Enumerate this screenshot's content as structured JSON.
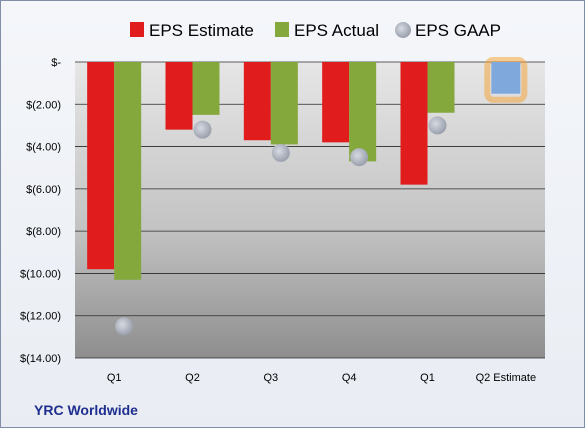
{
  "company": "YRC Worldwide",
  "chart_data": {
    "type": "bar",
    "categories": [
      "Q1",
      "Q2",
      "Q3",
      "Q4",
      "Q1",
      "Q2 Estimate"
    ],
    "series": [
      {
        "name": "EPS Estimate",
        "color": "#e01c1c",
        "values": [
          -9.8,
          -3.2,
          -3.7,
          -3.8,
          -5.8,
          null
        ]
      },
      {
        "name": "EPS Actual",
        "color": "#84a83c",
        "values": [
          -10.3,
          -2.5,
          -3.9,
          -4.7,
          -2.4,
          null
        ]
      },
      {
        "name": "EPS GAAP",
        "color": "#b0b6c2",
        "marker": "circle",
        "values": [
          -12.5,
          -3.2,
          -4.3,
          -4.5,
          -3.0,
          null
        ]
      }
    ],
    "forecast": {
      "category": "Q2 Estimate",
      "value": -1.5,
      "color": "#7fa8dc",
      "glow": "#f4a63c"
    },
    "ylim": [
      -14,
      0
    ],
    "yticks": [
      0,
      -2,
      -4,
      -6,
      -8,
      -10,
      -12,
      -14
    ],
    "ytick_labels": [
      "$-",
      "$(2.00)",
      "$(4.00)",
      "$(6.00)",
      "$(8.00)",
      "$(10.00)",
      "$(12.00)",
      "$(14.00)"
    ],
    "legend_position": "top",
    "grid": true
  }
}
